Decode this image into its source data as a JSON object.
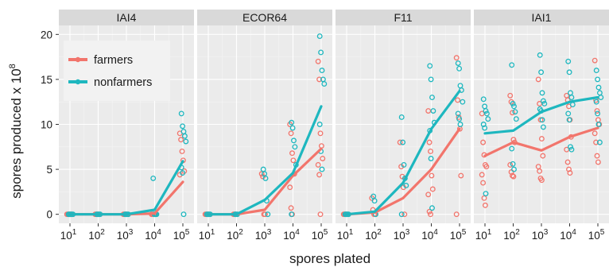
{
  "colors": {
    "farmers": "#F2756C",
    "nonfarmers": "#1EB7BF",
    "panel_bg": "#EBEBEB",
    "strip_bg": "#D9D9D9",
    "grid": "#FFFFFF"
  },
  "chart_data": {
    "type": "line",
    "title": "",
    "xlabel": "spores plated",
    "ylabel": "spores produced x 10",
    "ylabel_exponent": "8",
    "y_ticks": [
      0,
      5,
      10,
      15,
      20
    ],
    "ylim": [
      -1,
      21
    ],
    "x_tick_base": "10",
    "x_tick_exponents": [
      "1",
      "2",
      "3",
      "4",
      "5"
    ],
    "x": [
      1,
      2,
      3,
      4,
      5
    ],
    "legend": {
      "position": "top-left",
      "entries": [
        "farmers",
        "nonfarmers"
      ]
    },
    "facets": [
      {
        "name": "IAI4",
        "series": [
          {
            "name": "farmers",
            "values": [
              0,
              0,
              0,
              0.1,
              3.6
            ]
          },
          {
            "name": "nonfarmers",
            "values": [
              0,
              0,
              0,
              0.5,
              5.9
            ]
          }
        ],
        "points": {
          "farmers": [
            [
              0,
              0,
              0,
              0,
              0
            ],
            [
              0,
              0,
              0,
              0
            ],
            [
              0,
              0,
              0,
              0
            ],
            [
              0,
              0,
              0,
              0,
              0
            ],
            [
              9,
              8.3,
              7,
              6,
              4.8,
              4.4
            ]
          ],
          "nonfarmers": [
            [
              0,
              0,
              0,
              0,
              0
            ],
            [
              0,
              0,
              0,
              0
            ],
            [
              0,
              0,
              0,
              0
            ],
            [
              4,
              0,
              0,
              0
            ],
            [
              11.2,
              9.8,
              9.2,
              8.7,
              8.1,
              5.2,
              4.6,
              0
            ]
          ]
        }
      },
      {
        "name": "ECOR64",
        "series": [
          {
            "name": "farmers",
            "values": [
              0,
              0,
              0.5,
              4.3,
              7.3
            ]
          },
          {
            "name": "nonfarmers",
            "values": [
              0,
              0,
              1.6,
              4.6,
              12
            ]
          }
        ],
        "points": {
          "farmers": [
            [
              0,
              0,
              0,
              0
            ],
            [
              0,
              0,
              0
            ],
            [
              4.5,
              4.2,
              0,
              0
            ],
            [
              10,
              9,
              6.8,
              6,
              4.5,
              3,
              0.7,
              0
            ],
            [
              17,
              15,
              9,
              7.6,
              6.2,
              5.5,
              4.4,
              0
            ]
          ],
          "nonfarmers": [
            [
              0,
              0,
              0,
              0
            ],
            [
              0,
              0,
              0
            ],
            [
              5,
              4.5,
              4,
              1.5,
              0
            ],
            [
              10.2,
              9.6,
              8.2,
              7.5,
              5.5,
              0
            ],
            [
              19.8,
              18,
              16,
              15,
              14.5,
              10,
              7,
              5
            ]
          ]
        }
      },
      {
        "name": "F11",
        "series": [
          {
            "name": "farmers",
            "values": [
              0,
              0.2,
              1.8,
              5,
              9.5
            ]
          },
          {
            "name": "nonfarmers",
            "values": [
              0,
              0.3,
              3.5,
              9.5,
              13.7
            ]
          }
        ],
        "points": {
          "farmers": [
            [
              0,
              0,
              0,
              0
            ],
            [
              1.8,
              0.5,
              0,
              0
            ],
            [
              8,
              5.3,
              4.2,
              3,
              0
            ],
            [
              11.5,
              8,
              7,
              4.3,
              2.8,
              2.2,
              0.3,
              0
            ],
            [
              17.4,
              12.7,
              10.8,
              9.5,
              4.3,
              0
            ]
          ],
          "nonfarmers": [
            [
              0,
              0,
              0,
              0
            ],
            [
              2,
              1.5,
              0
            ],
            [
              10.8,
              8,
              5.5,
              4,
              3.2,
              0
            ],
            [
              16.5,
              15,
              13,
              11.5,
              10.2,
              9.3,
              6.2,
              0.7
            ],
            [
              16.8,
              16.2,
              14.3,
              13.8,
              12.5,
              11.2,
              10.6,
              10
            ]
          ]
        }
      },
      {
        "name": "IAI1",
        "series": [
          {
            "name": "farmers",
            "values": [
              6.5,
              8,
              7.1,
              8.6,
              9.6
            ]
          },
          {
            "name": "nonfarmers",
            "values": [
              9,
              9.3,
              11.4,
              12.5,
              13
            ]
          }
        ],
        "points": {
          "farmers": [
            [
              11.2,
              8,
              6.6,
              5.5,
              5.3,
              4.4,
              3.5,
              1.8,
              1
            ],
            [
              13.2,
              12.5,
              11.3,
              8.3,
              8,
              5.5,
              4.7,
              4.3,
              4.2
            ],
            [
              15,
              12.3,
              10.5,
              8.4,
              6.5,
              5.3,
              4.8,
              4,
              3.8
            ],
            [
              13.2,
              12.7,
              12,
              10.5,
              8.6,
              7.2,
              5.8,
              5,
              4.6
            ],
            [
              17.1,
              12.7,
              11.5,
              10.5,
              10,
              9,
              8,
              6.5,
              5.8
            ]
          ],
          "nonfarmers": [
            [
              12.8,
              12,
              11.5,
              11.2,
              10.6,
              10,
              9.6,
              2.3
            ],
            [
              16.6,
              12.3,
              12,
              11.4,
              10.6,
              7.3,
              5.6,
              5
            ],
            [
              17.7,
              15.8,
              13.5,
              12.6,
              12.3,
              11.7,
              11.5,
              10.5,
              9.7
            ],
            [
              17,
              15.8,
              13.5,
              13,
              12.2,
              11.2,
              10.5,
              7.5,
              7.2
            ],
            [
              16,
              15,
              14.1,
              13.5,
              13,
              12.5,
              11.2,
              10,
              8
            ]
          ]
        }
      }
    ]
  }
}
